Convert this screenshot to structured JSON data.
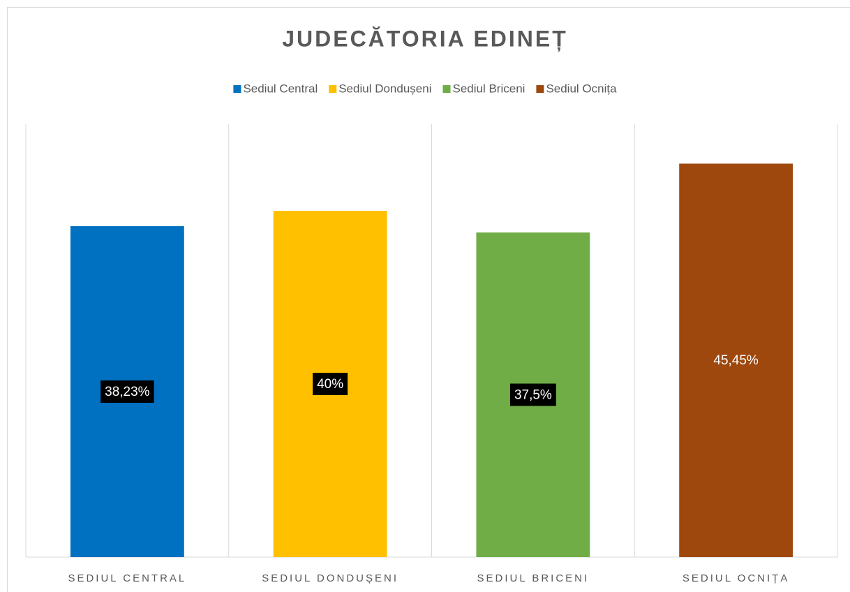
{
  "chart_data": {
    "type": "bar",
    "title": "JUDECĂTORIA EDINEȚ",
    "categories": [
      "SEDIUL CENTRAL",
      "SEDIUL DONDUȘENI",
      "SEDIUL BRICENI",
      "SEDIUL OCNIȚA"
    ],
    "series": [
      {
        "name": "Sediul Central",
        "color": "#0070c0",
        "label_background": "#000000",
        "values": [
          38.23,
          null,
          null,
          null
        ],
        "value_labels": [
          "38,23%",
          null,
          null,
          null
        ]
      },
      {
        "name": "Sediul Dondușeni",
        "color": "#ffc000",
        "label_background": "#000000",
        "values": [
          null,
          40,
          null,
          null
        ],
        "value_labels": [
          null,
          "40%",
          null,
          null
        ]
      },
      {
        "name": "Sediul Briceni",
        "color": "#70ad47",
        "label_background": "#000000",
        "values": [
          null,
          null,
          37.5,
          null
        ],
        "value_labels": [
          null,
          null,
          "37,5%",
          null
        ]
      },
      {
        "name": "Sediul Ocnița",
        "color": "#9e480e",
        "label_background": null,
        "values": [
          null,
          null,
          null,
          45.45
        ],
        "value_labels": [
          null,
          null,
          null,
          "45,45%"
        ]
      }
    ],
    "ylim": [
      0,
      50
    ],
    "legend": "top"
  }
}
